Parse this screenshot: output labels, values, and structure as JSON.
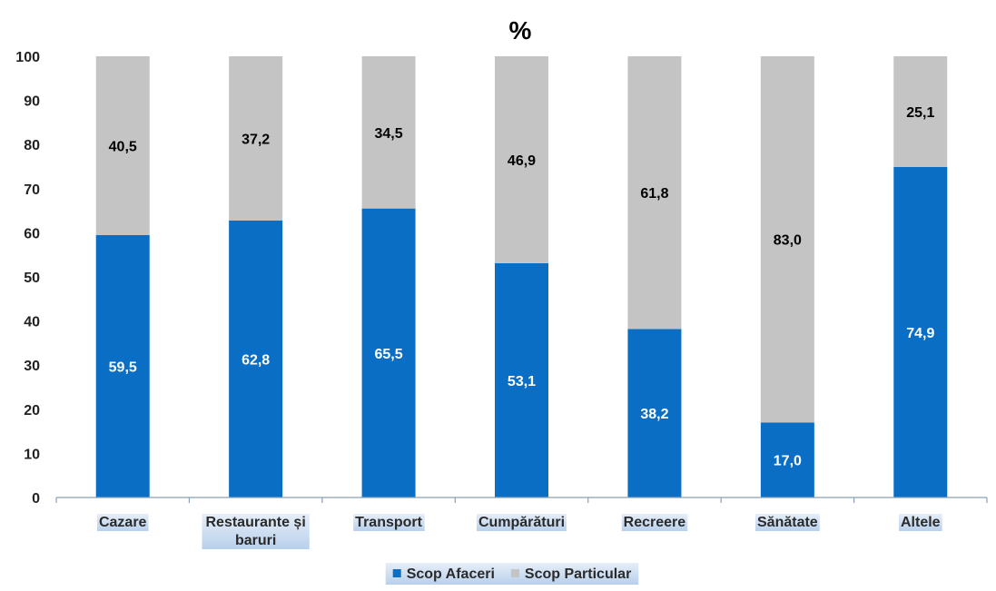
{
  "chart_data": {
    "type": "bar",
    "stacked": true,
    "title": "%",
    "xlabel": "",
    "ylabel": "",
    "ylim": [
      0,
      100
    ],
    "yticks": [
      0,
      10,
      20,
      30,
      40,
      50,
      60,
      70,
      80,
      90,
      100
    ],
    "categories": [
      "Cazare",
      "Restaurante și baruri",
      "Transport",
      "Cumpărături",
      "Recreere",
      "Sănătate",
      "Altele"
    ],
    "series": [
      {
        "name": "Scop Afaceri",
        "color": "#0a6fc4",
        "label_color": "#ffffff",
        "values": [
          59.5,
          62.8,
          65.5,
          53.1,
          38.2,
          17.0,
          74.9
        ],
        "labels": [
          "59,5",
          "62,8",
          "65,5",
          "53,1",
          "38,2",
          "17,0",
          "74,9"
        ]
      },
      {
        "name": "Scop Particular",
        "color": "#c4c4c4",
        "label_color": "#000000",
        "values": [
          40.5,
          37.2,
          34.5,
          46.9,
          61.8,
          83.0,
          25.1
        ],
        "labels": [
          "40,5",
          "37,2",
          "34,5",
          "46,9",
          "61,8",
          "83,0",
          "25,1"
        ]
      }
    ],
    "legend_position": "bottom"
  }
}
